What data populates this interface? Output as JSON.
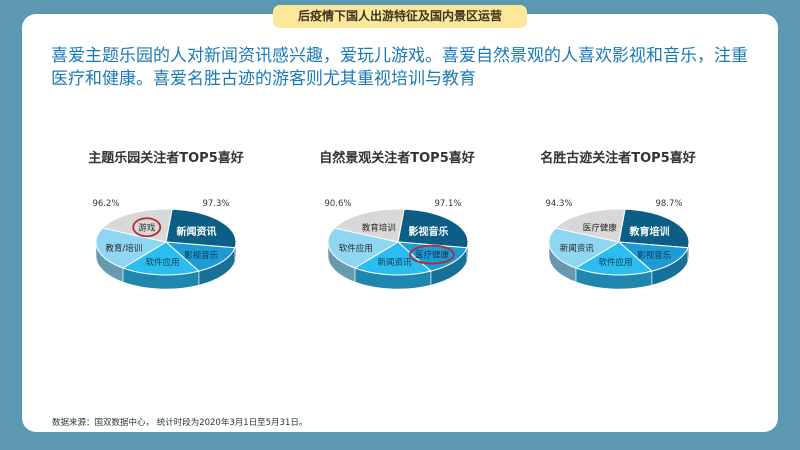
{
  "header": {
    "title": "后疫情下国人出游特征及国内景区运营"
  },
  "summary": "喜爱主题乐园的人对新闻资讯感兴趣，爱玩儿游戏。喜爱自然景观的人喜欢影视和音乐，注重医疗和健康。喜爱名胜古迹的游客则尤其重视培训与教育",
  "source": "数据来源：国双数据中心， 统计时段为2020年3月1日至5月31日。",
  "colors": {
    "dark": "#0c5e86",
    "blue": "#1e9bd2",
    "sky": "#2bbcf0",
    "light": "#8fd6f3",
    "grey": "#d8d8d8",
    "highlight_ring": "#b22a36"
  },
  "chart_data": [
    {
      "type": "pie",
      "title": "主题乐园关注者TOP5喜好",
      "categories": [
        "新闻资讯",
        "影视音乐",
        "软件应用",
        "教育/培训",
        "游戏"
      ],
      "values": [
        97.3,
        null,
        null,
        null,
        96.2
      ],
      "highlighted": "游戏"
    },
    {
      "type": "pie",
      "title": "自然景观关注者TOP5喜好",
      "categories": [
        "影视音乐",
        "医疗健康",
        "新闻资讯",
        "软件应用",
        "教育培训"
      ],
      "values": [
        97.1,
        null,
        null,
        null,
        90.6
      ],
      "highlighted": "医疗健康"
    },
    {
      "type": "pie",
      "title": "名胜古迹关注者TOP5喜好",
      "categories": [
        "教育培训",
        "影视音乐",
        "软件应用",
        "新闻资讯",
        "医疗健康"
      ],
      "values": [
        98.7,
        null,
        null,
        null,
        94.3
      ],
      "highlighted": null
    }
  ]
}
